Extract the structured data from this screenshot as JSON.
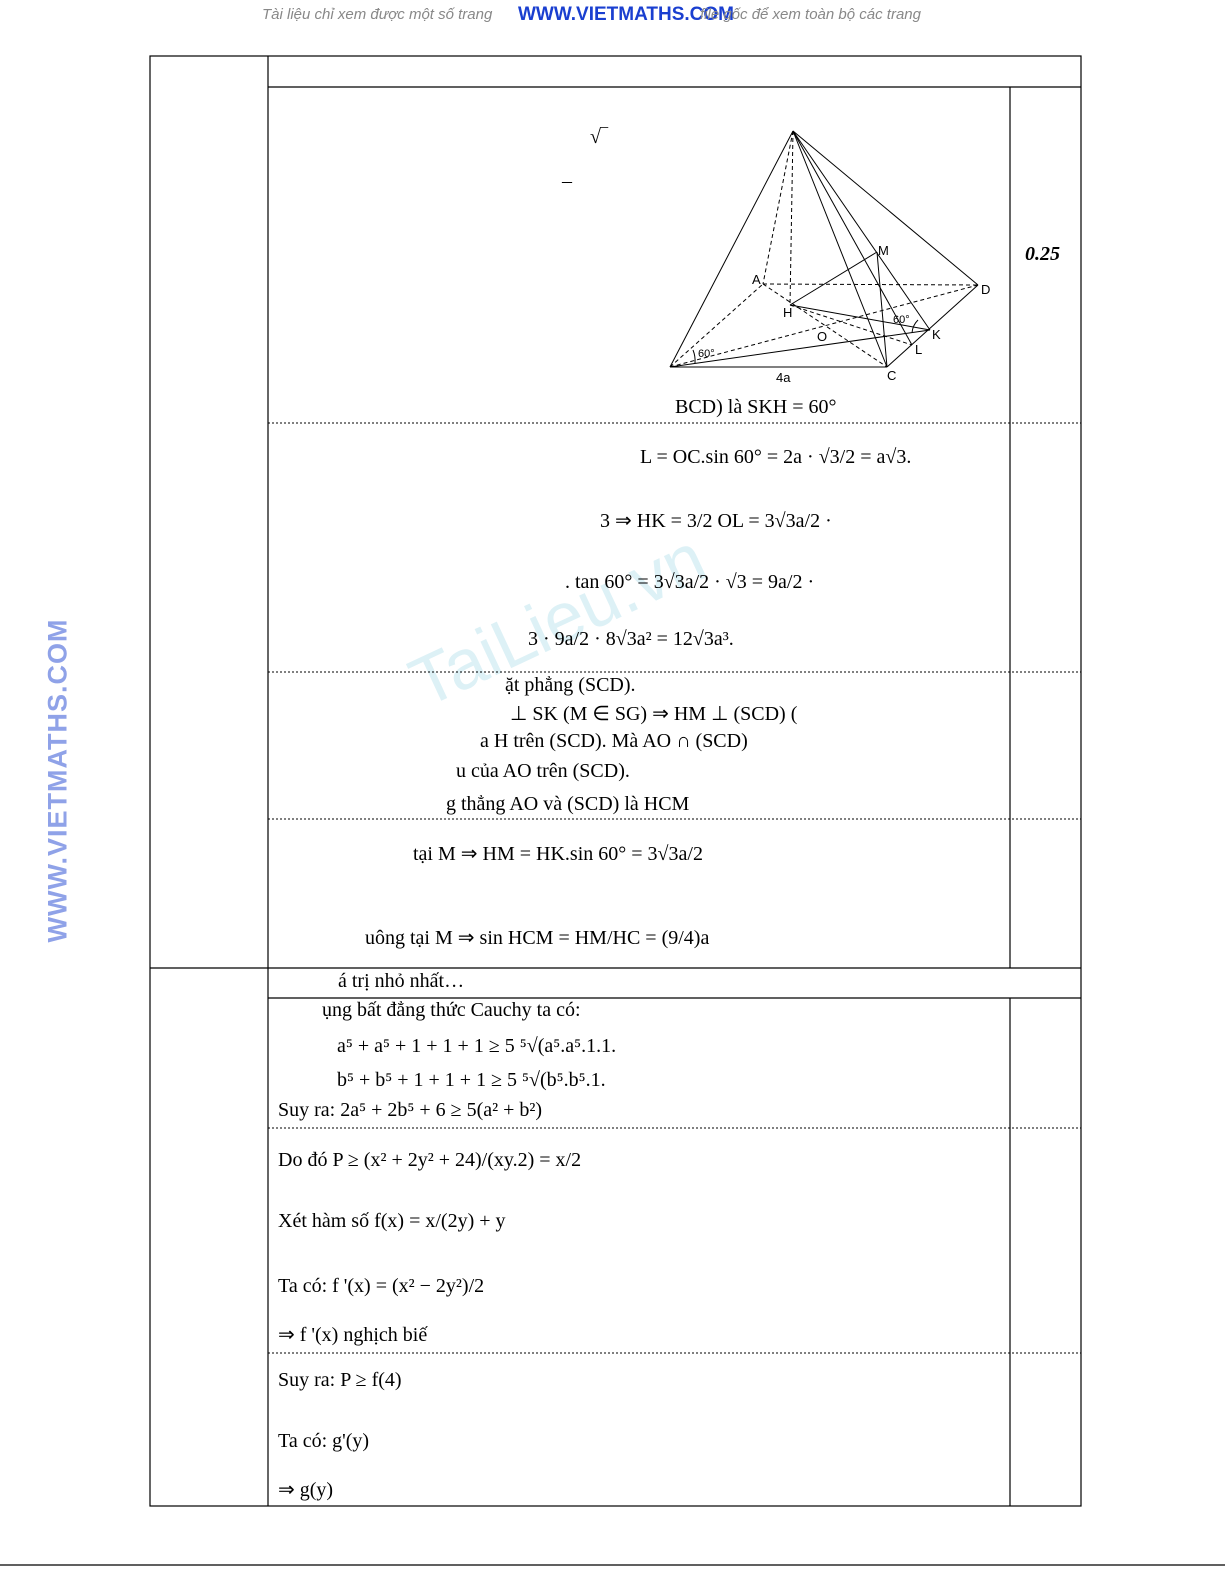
{
  "header": {
    "left": "Tài liệu chỉ xem được một số trang",
    "site": "WWW.VIETMATHS.COM",
    "right": "file gốc để xem toàn bộ các trang"
  },
  "side_text": "WWW.VIETMATHS.COM",
  "watermark": "TaiLieu.vn",
  "figure": {
    "labels": [
      "A",
      "D",
      "C",
      "M",
      "H",
      "O",
      "K",
      "L",
      "60°",
      "60°",
      "4a"
    ]
  },
  "score": "0.25",
  "rows": [
    {
      "lines": [
        "√‾",
        "–",
        "BCD) là SKH = 60°"
      ]
    },
    {
      "lines": [
        "L = OC.sin 60° = 2a · √3/2 = a√3.",
        "3 ⇒ HK = 3/2 OL = 3√3a/2 ·",
        ". tan 60° = 3√3a/2 · √3 = 9a/2 ·",
        "3 · 9a/2 · 8√3a² = 12√3a³."
      ]
    },
    {
      "lines": [
        "ặt phẳng (SCD).",
        "⊥ SK (M ∈ SG) ⇒ HM ⊥ (SCD) (",
        "a H trên (SCD). Mà AO ∩ (SCD)",
        "u của AO trên (SCD).",
        "g thẳng AO và (SCD) là HCM"
      ]
    },
    {
      "lines": [
        "tại M ⇒ HM = HK.sin 60° = 3√3a/2",
        "uông tại M ⇒ sin HCM = HM/HC = (9/4)a"
      ]
    },
    {
      "lines": [
        "á trị nhỏ nhất…"
      ]
    },
    {
      "lines": [
        "ụng bất đẳng thức Cauchy ta có:",
        "a⁵ + a⁵ + 1 + 1 + 1 ≥ 5 ⁵√(a⁵.a⁵.1.1.",
        "b⁵ + b⁵ + 1 + 1 + 1 ≥ 5 ⁵√(b⁵.b⁵.1.",
        "Suy ra: 2a⁵ + 2b⁵ + 6 ≥ 5(a² + b²)"
      ]
    },
    {
      "lines": [
        "Do đó P ≥ (x² + 2y² + 24)/(xy.2) = x/2",
        "Xét hàm số f(x) = x/(2y) + y",
        "Ta có: f '(x) = (x² − 2y²)/2",
        "⇒ f '(x) nghịch biế"
      ]
    },
    {
      "lines": [
        "Suy ra: P ≥ f(4)",
        "Ta có: g'(y)",
        "⇒ g(y)"
      ]
    }
  ]
}
